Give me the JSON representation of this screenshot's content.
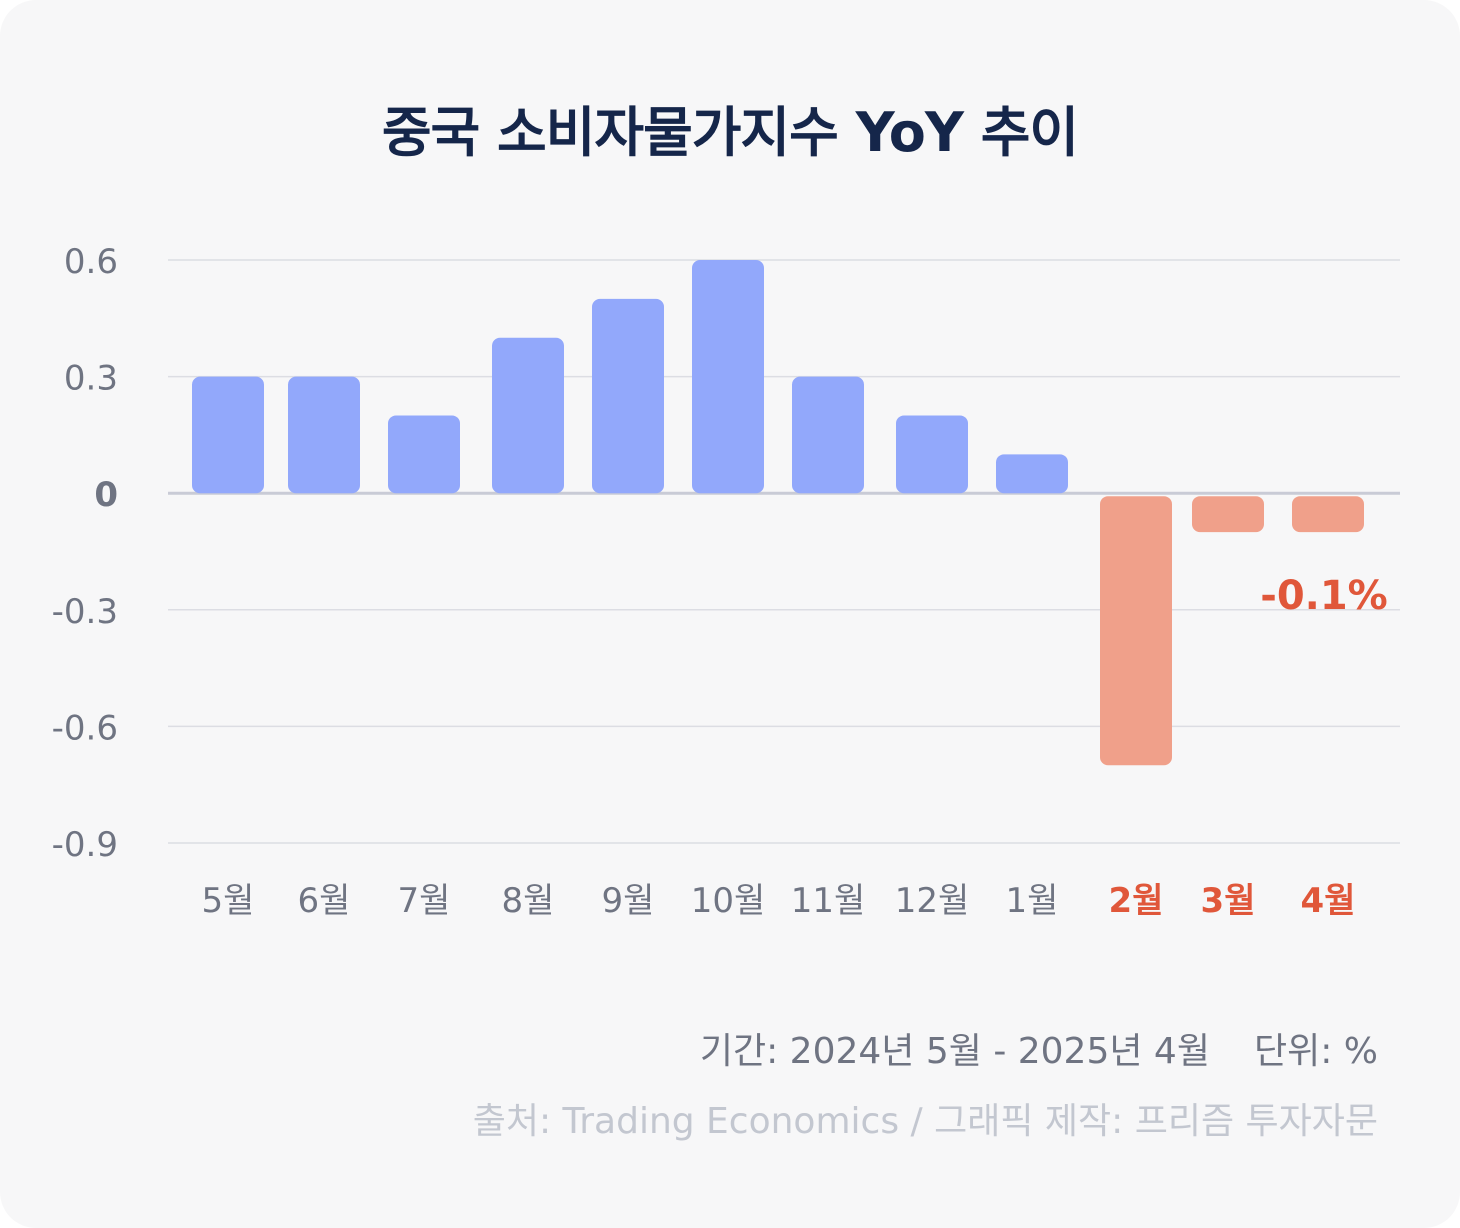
{
  "title": "중국 소비자물가지수 YoY 추이",
  "chart_data": {
    "type": "bar",
    "title": "중국 소비자물가지수 YoY 추이",
    "categories": [
      "5월",
      "6월",
      "7월",
      "8월",
      "9월",
      "10월",
      "11월",
      "12월",
      "1월",
      "2월",
      "3월",
      "4월"
    ],
    "values": [
      0.3,
      0.3,
      0.2,
      0.4,
      0.5,
      0.6,
      0.3,
      0.2,
      0.1,
      -0.7,
      -0.1,
      -0.1
    ],
    "ylim": [
      -0.9,
      0.6
    ],
    "yticks": [
      "0.6",
      "0.3",
      "0",
      "-0.3",
      "-0.6",
      "-0.9"
    ],
    "ytick_values": [
      0.6,
      0.3,
      0,
      -0.3,
      -0.6,
      -0.9
    ],
    "grid": true,
    "colors": {
      "positive": "#92a8fb",
      "negative": "#f0a08a",
      "negative_label": "#e0573a",
      "tick_label": "#6f7482",
      "zero_line": "#c9cbd6",
      "grid": "#dcdde3"
    },
    "annotations": [
      {
        "text": "-0.1%",
        "category": "4월"
      }
    ]
  },
  "footer": {
    "period": "기간: 2024년 5월 - 2025년 4월",
    "unit": "단위: %",
    "source": "출처: Trading Economics / 그래픽 제작: 프리즘 투자자문"
  }
}
